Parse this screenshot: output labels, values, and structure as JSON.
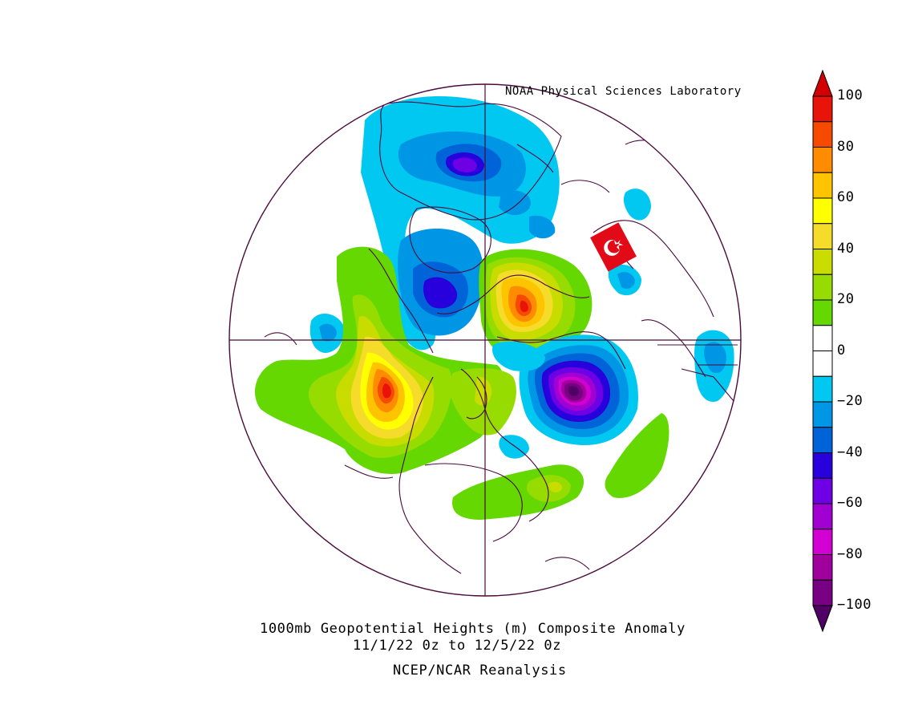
{
  "header": {
    "credit": "NOAA Physical Sciences Laboratory"
  },
  "footer": {
    "title": "1000mb Geopotential Heights (m)   Composite Anomaly",
    "dates": "11/1/22 0z  to 12/5/22 0z",
    "source": "NCEP/NCAR Reanalysis"
  },
  "colorbar": {
    "ticks": [
      "100",
      "80",
      "60",
      "40",
      "20",
      "0",
      "−20",
      "−40",
      "−60",
      "−80",
      "−100"
    ],
    "bins": [
      {
        "range": "90 to 100",
        "color": "#e8140a"
      },
      {
        "range": "80 to 90",
        "color": "#f54a00"
      },
      {
        "range": "70 to 80",
        "color": "#ff8c00"
      },
      {
        "range": "60 to 70",
        "color": "#ffc400"
      },
      {
        "range": "50 to 60",
        "color": "#ffff00"
      },
      {
        "range": "40 to 50",
        "color": "#f5dc2a"
      },
      {
        "range": "30 to 40",
        "color": "#c8dc00"
      },
      {
        "range": "20 to 30",
        "color": "#96dc00"
      },
      {
        "range": "10 to 20",
        "color": "#64d800"
      },
      {
        "range": "0 to 10",
        "color": "#ffffff"
      },
      {
        "range": "-10 to 0",
        "color": "#ffffff"
      },
      {
        "range": "-20 to -10",
        "color": "#00c8f0"
      },
      {
        "range": "-30 to -20",
        "color": "#0096e6"
      },
      {
        "range": "-40 to -30",
        "color": "#0064d8"
      },
      {
        "range": "-50 to -40",
        "color": "#2800dc"
      },
      {
        "range": "-60 to -50",
        "color": "#6e00e6"
      },
      {
        "range": "-70 to -60",
        "color": "#a000d2"
      },
      {
        "range": "-80 to -70",
        "color": "#d200d2"
      },
      {
        "range": "-90 to -80",
        "color": "#a0009c"
      },
      {
        "range": "-100 to -90",
        "color": "#780082"
      }
    ],
    "over_color": "#d20000",
    "under_color": "#500064"
  },
  "map": {
    "projection": "north polar stereographic",
    "coastline_color": "#4a0a3c",
    "overlay_flag": {
      "country": "Turkey",
      "color": "#e30a17"
    }
  }
}
